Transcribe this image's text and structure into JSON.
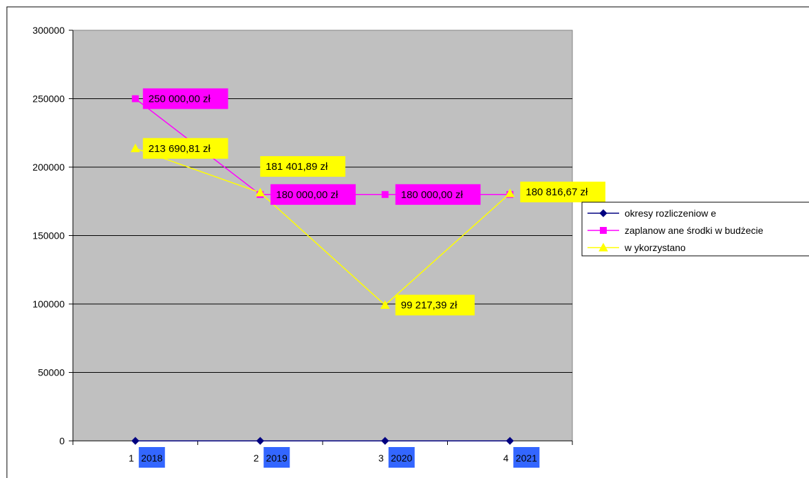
{
  "chart_data": {
    "type": "line",
    "categories": [
      "1",
      "2",
      "3",
      "4"
    ],
    "year_labels": [
      "2018",
      "2019",
      "2020",
      "2021"
    ],
    "y_ticks": [
      "0",
      "50000",
      "100000",
      "150000",
      "200000",
      "250000",
      "300000"
    ],
    "ylim": [
      0,
      300000
    ],
    "grid": true,
    "legend_position": "right",
    "colors": {
      "plot_bg": "#c0c0c0",
      "year_box": "#3366ff"
    },
    "series": [
      {
        "name": "okresy rozliczeniow e",
        "values": [
          1,
          2,
          3,
          4
        ],
        "color": "#000080",
        "marker": "diamond",
        "labels": []
      },
      {
        "name": "zaplanow ane środki w  budżecie",
        "values": [
          250000,
          180000,
          180000,
          180000
        ],
        "color": "#ff00ff",
        "marker": "square",
        "labels": [
          "250 000,00 zł",
          "180 000,00 zł",
          "180 000,00 zł",
          ""
        ]
      },
      {
        "name": "w ykorzystano",
        "values": [
          213690.81,
          181401.89,
          99217.39,
          180816.67
        ],
        "color": "#ffff00",
        "marker": "triangle",
        "labels": [
          "213 690,81 zł",
          "181 401,89 zł",
          "99 217,39 zł",
          "180 816,67 zł"
        ]
      }
    ]
  }
}
